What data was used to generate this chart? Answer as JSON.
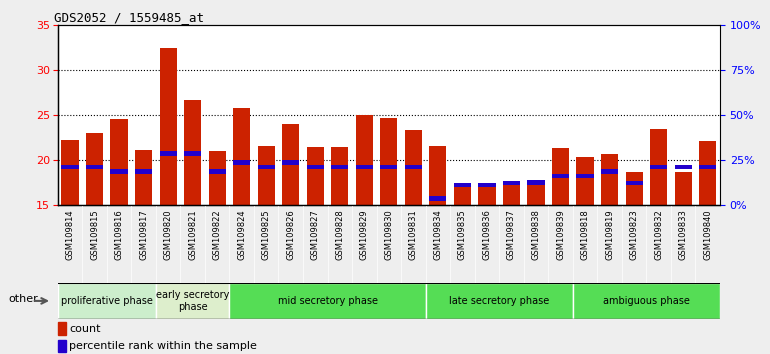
{
  "title": "GDS2052 / 1559485_at",
  "samples": [
    "GSM109814",
    "GSM109815",
    "GSM109816",
    "GSM109817",
    "GSM109820",
    "GSM109821",
    "GSM109822",
    "GSM109824",
    "GSM109825",
    "GSM109826",
    "GSM109827",
    "GSM109828",
    "GSM109829",
    "GSM109830",
    "GSM109831",
    "GSM109834",
    "GSM109835",
    "GSM109836",
    "GSM109837",
    "GSM109838",
    "GSM109839",
    "GSM109818",
    "GSM109819",
    "GSM109823",
    "GSM109832",
    "GSM109833",
    "GSM109840"
  ],
  "count_values": [
    22.2,
    23.0,
    24.6,
    21.1,
    32.4,
    26.7,
    21.0,
    25.8,
    21.6,
    24.0,
    21.5,
    21.5,
    25.0,
    24.7,
    23.3,
    21.6,
    17.1,
    17.2,
    17.4,
    17.5,
    21.4,
    20.3,
    20.7,
    18.7,
    23.5,
    18.7,
    22.1
  ],
  "blue_marker_values": [
    19.0,
    19.0,
    18.5,
    18.5,
    20.5,
    20.5,
    18.5,
    19.5,
    19.0,
    19.5,
    19.0,
    19.0,
    19.0,
    19.0,
    19.0,
    15.5,
    17.0,
    17.0,
    17.2,
    17.3,
    18.0,
    18.0,
    18.5,
    17.2,
    19.0,
    19.0,
    19.0
  ],
  "blue_bar_height": 0.5,
  "phase_defs": [
    {
      "label": "proliferative phase",
      "start": 0,
      "end": 3,
      "color": "#cceecc"
    },
    {
      "label": "early secretory\nphase",
      "start": 4,
      "end": 6,
      "color": "#ddeecc"
    },
    {
      "label": "mid secretory phase",
      "start": 7,
      "end": 14,
      "color": "#55dd55"
    },
    {
      "label": "late secretory phase",
      "start": 15,
      "end": 20,
      "color": "#55dd55"
    },
    {
      "label": "ambiguous phase",
      "start": 21,
      "end": 26,
      "color": "#55dd55"
    }
  ],
  "y_min": 15,
  "y_max": 35,
  "y_ticks_left": [
    15,
    20,
    25,
    30,
    35
  ],
  "y_ticks_right": [
    0,
    25,
    50,
    75,
    100
  ],
  "bar_color_red": "#cc2200",
  "bar_color_blue": "#2200cc",
  "tick_bg_color": "#cccccc",
  "fig_bg_color": "#eeeeee",
  "plot_bg_color": "#ffffff",
  "grid_color": "#000000"
}
